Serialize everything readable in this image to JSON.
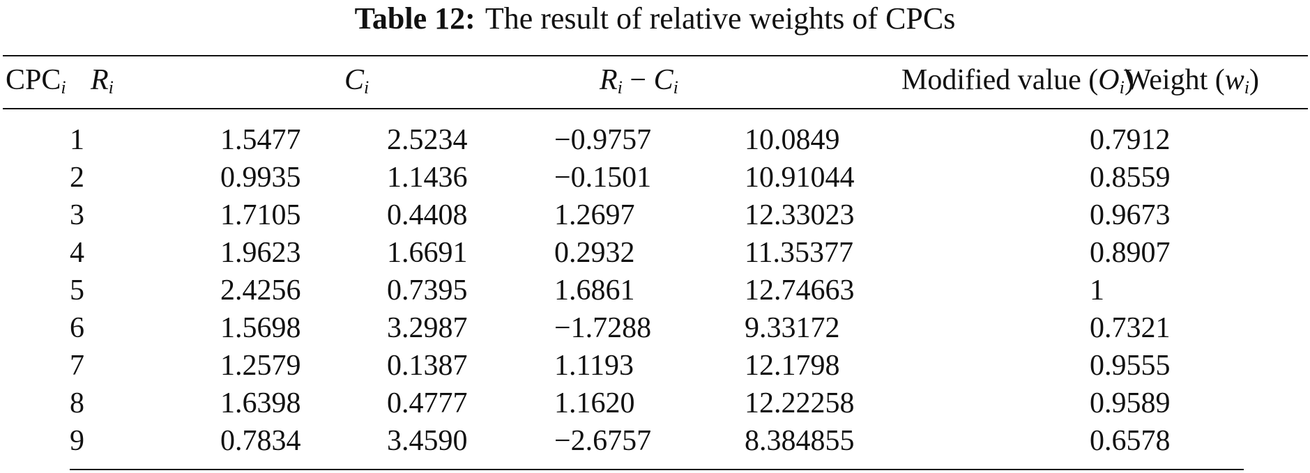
{
  "caption": {
    "label": "Table 12:",
    "text": "The result of relative weights of CPCs"
  },
  "headers": {
    "cpc": "CPC",
    "cpc_sub": "i",
    "r": "R",
    "r_sub": "i",
    "c": "C",
    "c_sub": "i",
    "rc_r": "R",
    "rc_r_sub": "i",
    "rc_minus": " − ",
    "rc_c": "C",
    "rc_c_sub": "i",
    "modified_prefix": "Modified value (",
    "modified_var": "O",
    "modified_sub": "i",
    "modified_suffix": ")",
    "weight_prefix": "Weight (",
    "weight_var": "w",
    "weight_sub": "i",
    "weight_suffix": ")"
  },
  "rows": [
    {
      "cpc": "1",
      "r": "1.5477",
      "c": "2.5234",
      "rc": "−0.9757",
      "modified": "10.0849",
      "weight": "0.7912"
    },
    {
      "cpc": "2",
      "r": "0.9935",
      "c": "1.1436",
      "rc": "−0.1501",
      "modified": "10.91044",
      "weight": "0.8559"
    },
    {
      "cpc": "3",
      "r": "1.7105",
      "c": "0.4408",
      "rc": "1.2697",
      "modified": "12.33023",
      "weight": "0.9673"
    },
    {
      "cpc": "4",
      "r": "1.9623",
      "c": "1.6691",
      "rc": "0.2932",
      "modified": "11.35377",
      "weight": "0.8907"
    },
    {
      "cpc": "5",
      "r": "2.4256",
      "c": "0.7395",
      "rc": "1.6861",
      "modified": "12.74663",
      "weight": "1"
    },
    {
      "cpc": "6",
      "r": "1.5698",
      "c": "3.2987",
      "rc": "−1.7288",
      "modified": "9.33172",
      "weight": "0.7321"
    },
    {
      "cpc": "7",
      "r": "1.2579",
      "c": "0.1387",
      "rc": "1.1193",
      "modified": "12.1798",
      "weight": "0.9555"
    },
    {
      "cpc": "8",
      "r": "1.6398",
      "c": "0.4777",
      "rc": "1.1620",
      "modified": "12.22258",
      "weight": "0.9589"
    },
    {
      "cpc": "9",
      "r": "0.7834",
      "c": "3.4590",
      "rc": "−2.6757",
      "modified": "8.384855",
      "weight": "0.6578"
    }
  ]
}
